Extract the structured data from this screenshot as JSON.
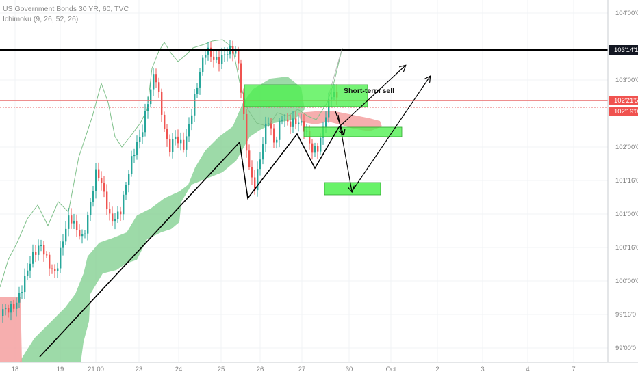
{
  "header": {
    "symbol_line": "US Government Bonds 30 YR, 60, TVC",
    "indicator_line": "Ichimoku (9, 26, 52, 26)"
  },
  "chart_data": {
    "type": "candlestick",
    "symbol": "US Government Bonds 30 YR",
    "interval": "60",
    "source": "TVC",
    "indicator": "Ichimoku (9, 26, 52, 26)",
    "y_ticks": [
      "104'00'0",
      "103'00'0",
      "102'00'0",
      "101'16'0",
      "101'00'0",
      "100'16'0",
      "100'00'0",
      "99'16'0",
      "99'00'0"
    ],
    "x_ticks": [
      "18",
      "19",
      "21:00",
      "23",
      "24",
      "25",
      "26",
      "27",
      "30",
      "Oct",
      "2",
      "3",
      "4",
      "7"
    ],
    "price_tags": [
      {
        "label": "103'14'1",
        "style": "black"
      },
      {
        "label": "102'21'5",
        "style": "red"
      },
      {
        "label": "102'19'0",
        "style": "red"
      }
    ],
    "annotation": "Short-term sell",
    "colors": {
      "up": "#26a69a",
      "down": "#ef5350",
      "kumo_bull": "#7ccd8b",
      "kumo_bear": "#f4a0a0",
      "zone": "#4ef04e",
      "resistance": "#000000",
      "level": "#e86a6a"
    }
  }
}
